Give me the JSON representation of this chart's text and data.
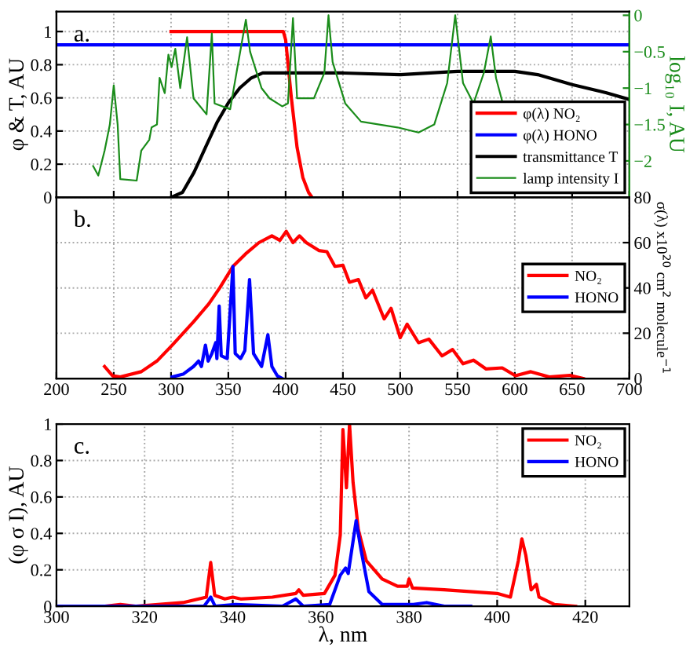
{
  "chart_data": [
    {
      "type": "line",
      "annotations": [
        "a."
      ],
      "ylabel": "φ & T, AU",
      "y2label": "log₁₀ I, AU",
      "xlim": [
        200,
        700
      ],
      "xticks": [
        200,
        250,
        300,
        350,
        400,
        450,
        500,
        550,
        600,
        650,
        700
      ],
      "ylim": [
        0,
        1.12
      ],
      "yticks": [
        0,
        0.2,
        0.4,
        0.6,
        0.8,
        1
      ],
      "y2lim": [
        -2.5,
        0.05
      ],
      "y2ticks": [
        {
          "value": -2,
          "label": "−2"
        },
        {
          "value": -1.5,
          "label": "−1.5"
        },
        {
          "value": -1,
          "label": "−1"
        },
        {
          "value": -0.5,
          "label": "−0.5"
        },
        0
      ],
      "tick_labels": "y",
      "grid": true,
      "legend": "bottom right",
      "series": [
        {
          "name": "φ(λ) NO₂",
          "color": "#ff0000",
          "x": [
            300,
            398,
            400,
            405,
            410,
            415,
            420,
            423
          ],
          "values": [
            1,
            1,
            0.95,
            0.6,
            0.3,
            0.12,
            0.03,
            0
          ]
        },
        {
          "name": "φ(λ) HONO",
          "color": "#0000ff",
          "x": [
            200,
            700
          ],
          "values": [
            0.92,
            0.92
          ]
        },
        {
          "name": "transmittance T",
          "color": "#000000",
          "x": [
            300,
            310,
            320,
            330,
            340,
            350,
            360,
            370,
            380,
            400,
            450,
            500,
            550,
            600,
            620,
            650,
            680,
            700
          ],
          "values": [
            0,
            0.03,
            0.15,
            0.3,
            0.45,
            0.57,
            0.66,
            0.72,
            0.75,
            0.75,
            0.75,
            0.74,
            0.76,
            0.76,
            0.74,
            0.68,
            0.63,
            0.59
          ]
        },
        {
          "name": "lamp intensity I",
          "color": "#1a8c1a",
          "axis": "y2",
          "x": [
            232,
            236.5,
            242,
            246.6,
            250,
            253.4,
            255.7,
            270,
            274,
            281,
            283,
            287.7,
            290,
            294.5,
            297.7,
            300.5,
            303.7,
            308,
            314,
            319.6,
            331,
            335.6,
            338,
            351.6,
            358,
            365.3,
            369,
            379,
            386,
            397,
            402,
            406.4,
            410,
            424.7,
            433.8,
            437.4,
            441,
            452,
            465.8,
            497.7,
            516,
            529.7,
            541,
            548,
            554.8,
            564,
            573,
            579,
            583.6,
            589
          ],
          "values": [
            -2.07,
            -2.2,
            -1.86,
            -1.5,
            -0.96,
            -1.5,
            -2.25,
            -2.27,
            -1.86,
            -1.71,
            -1.54,
            -1.5,
            -0.86,
            -1.07,
            -0.54,
            -0.71,
            -0.46,
            -1.0,
            -0.3,
            -1.14,
            -1.36,
            -0.25,
            -1.21,
            -1.29,
            -0.71,
            -0.06,
            -0.5,
            -1.0,
            -1.14,
            -1.25,
            -1.21,
            -0.04,
            -1.14,
            -1.14,
            -0.79,
            0,
            -0.64,
            -1.21,
            -1.46,
            -1.54,
            -1.61,
            -1.5,
            -0.93,
            0,
            -0.93,
            -1.21,
            -0.79,
            -0.29,
            -0.86,
            -1.18
          ]
        }
      ]
    },
    {
      "type": "line",
      "annotations": [
        "b."
      ],
      "y2label": "σ(λ) x10$^{20}$ cm$^{2}$ molecule$^{−1}$",
      "xlim": [
        200,
        700
      ],
      "xticks": [
        200,
        250,
        300,
        350,
        400,
        450,
        500,
        550,
        600,
        650,
        700
      ],
      "y2lim": [
        0,
        80
      ],
      "y2ticks": [
        0,
        20,
        40,
        60,
        80
      ],
      "grid": true,
      "legend": "right",
      "series": [
        {
          "name": "NO₂",
          "color": "#ff0000",
          "axis": "y2",
          "x": [
            242,
            249,
            255.7,
            274,
            287.7,
            301,
            319.6,
            333,
            342.5,
            354,
            365,
            376.7,
            388,
            395,
            400.5,
            406.4,
            412,
            418,
            429,
            436,
            443,
            450,
            455.7,
            463.5,
            470,
            475.8,
            486,
            492,
            500,
            506,
            516,
            525,
            536.5,
            545.7,
            554.8,
            564,
            575,
            589,
            600.5,
            614,
            630,
            648,
            659.8
          ],
          "values": [
            5.3,
            1.2,
            0.7,
            3,
            7.7,
            14.7,
            25,
            33,
            40,
            49.5,
            55,
            60,
            63,
            61,
            65,
            60,
            63,
            60,
            56.5,
            56,
            49.5,
            50,
            42.5,
            43.7,
            35.6,
            39,
            26.3,
            31,
            18,
            24,
            15.8,
            17.4,
            10,
            12.8,
            6.5,
            8.1,
            4.2,
            4.7,
            1.2,
            3,
            0.7,
            1.4,
            0
          ]
        },
        {
          "name": "HONO",
          "color": "#0000ff",
          "axis": "y2",
          "x": [
            301,
            310.5,
            319.6,
            324,
            326.5,
            330,
            332.4,
            335.6,
            339,
            340,
            342,
            343.8,
            349,
            354,
            356,
            360.7,
            364.4,
            368.5,
            372,
            379,
            384.5,
            388,
            392.7,
            397
          ],
          "values": [
            0.7,
            1.9,
            5.3,
            7.7,
            5.3,
            14.7,
            7.7,
            11,
            15.8,
            8.8,
            32,
            10,
            8.8,
            49.5,
            11,
            8.8,
            12.3,
            43.7,
            11,
            5.3,
            19.3,
            5.3,
            1.2,
            0
          ]
        }
      ]
    },
    {
      "type": "line",
      "annotations": [
        "c."
      ],
      "xlabel": "λ, nm",
      "ylabel": "(φ σ I), AU",
      "xlim": [
        300,
        430
      ],
      "xticks": [
        300,
        320,
        340,
        360,
        380,
        400,
        420
      ],
      "ylim": [
        0,
        1
      ],
      "yticks": [
        0,
        0.2,
        0.4,
        0.6,
        0.8,
        1
      ],
      "grid": true,
      "legend": "top right",
      "series": [
        {
          "name": "NO₂",
          "color": "#ff0000",
          "x": [
            300,
            311,
            314.5,
            318,
            328.7,
            334,
            335,
            335.9,
            338.2,
            340,
            341.8,
            349,
            354.3,
            355,
            356,
            360.8,
            363.2,
            364.4,
            365,
            365.8,
            366.5,
            367.3,
            368.5,
            370.3,
            373.9,
            377.4,
            379.6,
            380,
            380.8,
            388,
            400,
            403,
            404.8,
            405.6,
            406.5,
            407.7,
            408.9,
            409.5,
            413,
            417.8
          ],
          "values": [
            0,
            0,
            0.01,
            0,
            0.02,
            0.05,
            0.24,
            0.06,
            0.04,
            0.05,
            0.04,
            0.05,
            0.07,
            0.09,
            0.06,
            0.07,
            0.17,
            0.39,
            0.97,
            0.65,
            1.0,
            0.68,
            0.42,
            0.25,
            0.15,
            0.11,
            0.11,
            0.15,
            0.1,
            0.09,
            0.07,
            0.05,
            0.25,
            0.37,
            0.28,
            0.09,
            0.12,
            0.05,
            0.01,
            0
          ]
        },
        {
          "name": "HONO",
          "color": "#0000ff",
          "x": [
            300,
            333.5,
            335,
            336,
            340.6,
            351.3,
            354.3,
            356,
            362,
            364.4,
            365.6,
            366.2,
            368,
            369.1,
            370.9,
            373.9,
            381,
            384,
            388,
            394
          ],
          "values": [
            0,
            0,
            0.05,
            0,
            0.01,
            0,
            0.04,
            0,
            0.01,
            0.17,
            0.21,
            0.18,
            0.47,
            0.31,
            0.08,
            0.01,
            0.01,
            0.02,
            0,
            0
          ]
        }
      ]
    }
  ]
}
